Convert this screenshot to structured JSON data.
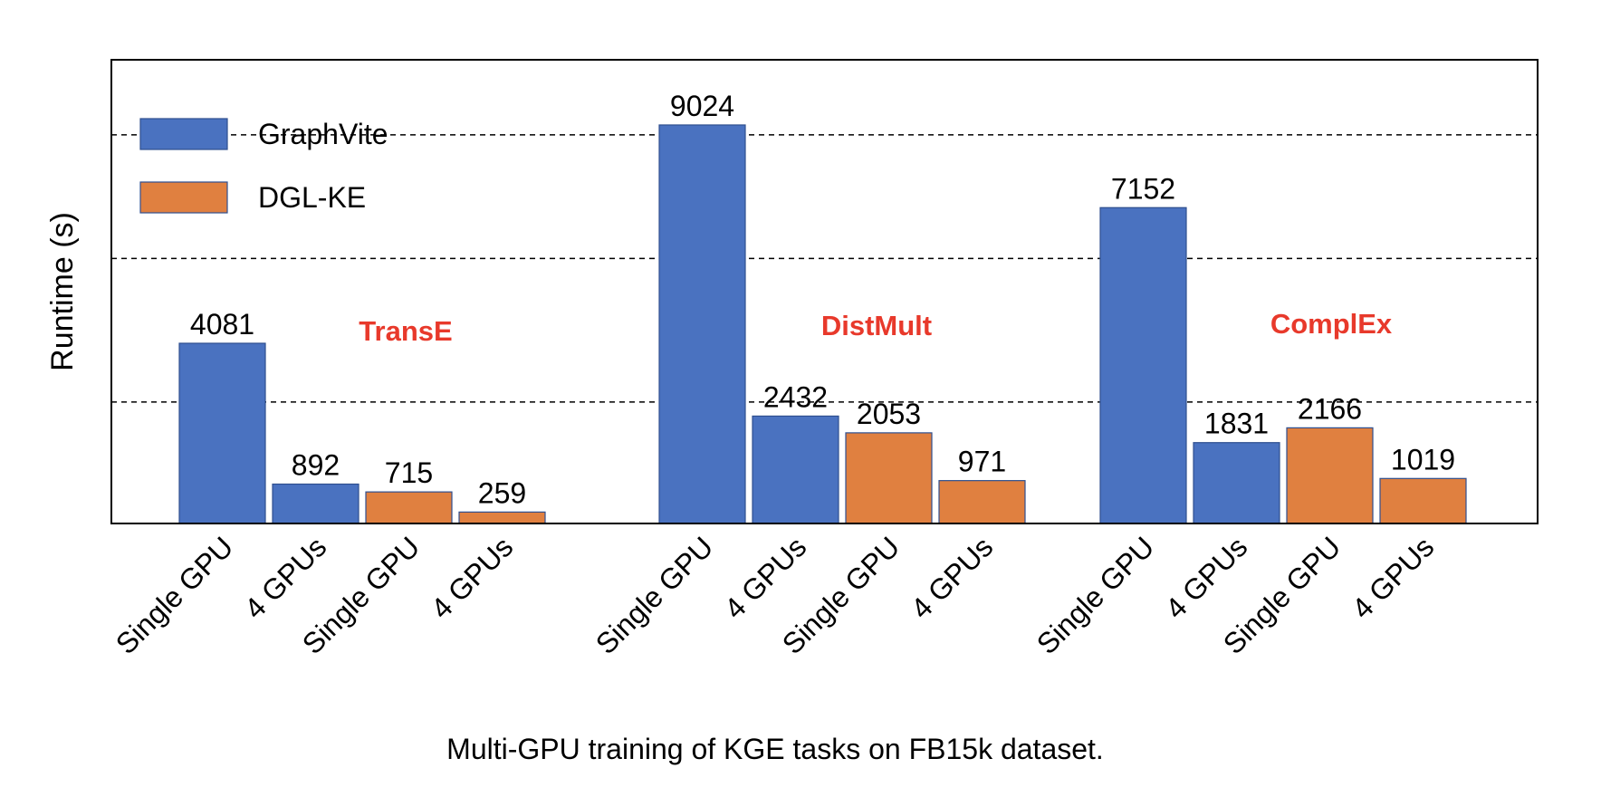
{
  "chart_data": {
    "type": "bar",
    "title": "",
    "caption": "Multi-GPU training of KGE tasks on FB15k dataset.",
    "ylabel": "Runtime (s)",
    "xlabel": "",
    "ylim": [
      0,
      10500
    ],
    "grid": "horizontal-dashed",
    "legend_position": "top-left",
    "legend": [
      {
        "name": "GraphVite",
        "color": "#4a72c0"
      },
      {
        "name": "DGL-KE",
        "color": "#e08040"
      }
    ],
    "group_label_color": "#e8392b",
    "groups": [
      {
        "name": "TransE",
        "bars": [
          {
            "label": "Single GPU",
            "system": "GraphVite",
            "value": 4081
          },
          {
            "label": "4 GPUs",
            "system": "GraphVite",
            "value": 892
          },
          {
            "label": "Single GPU",
            "system": "DGL-KE",
            "value": 715
          },
          {
            "label": "4 GPUs",
            "system": "DGL-KE",
            "value": 259
          }
        ]
      },
      {
        "name": "DistMult",
        "bars": [
          {
            "label": "Single GPU",
            "system": "GraphVite",
            "value": 9024
          },
          {
            "label": "4 GPUs",
            "system": "GraphVite",
            "value": 2432
          },
          {
            "label": "Single GPU",
            "system": "DGL-KE",
            "value": 2053
          },
          {
            "label": "4 GPUs",
            "system": "DGL-KE",
            "value": 971
          }
        ]
      },
      {
        "name": "ComplEx",
        "bars": [
          {
            "label": "Single GPU",
            "system": "GraphVite",
            "value": 7152
          },
          {
            "label": "4 GPUs",
            "system": "GraphVite",
            "value": 1831
          },
          {
            "label": "Single GPU",
            "system": "DGL-KE",
            "value": 2166
          },
          {
            "label": "4 GPUs",
            "system": "DGL-KE",
            "value": 1019
          }
        ]
      }
    ]
  }
}
